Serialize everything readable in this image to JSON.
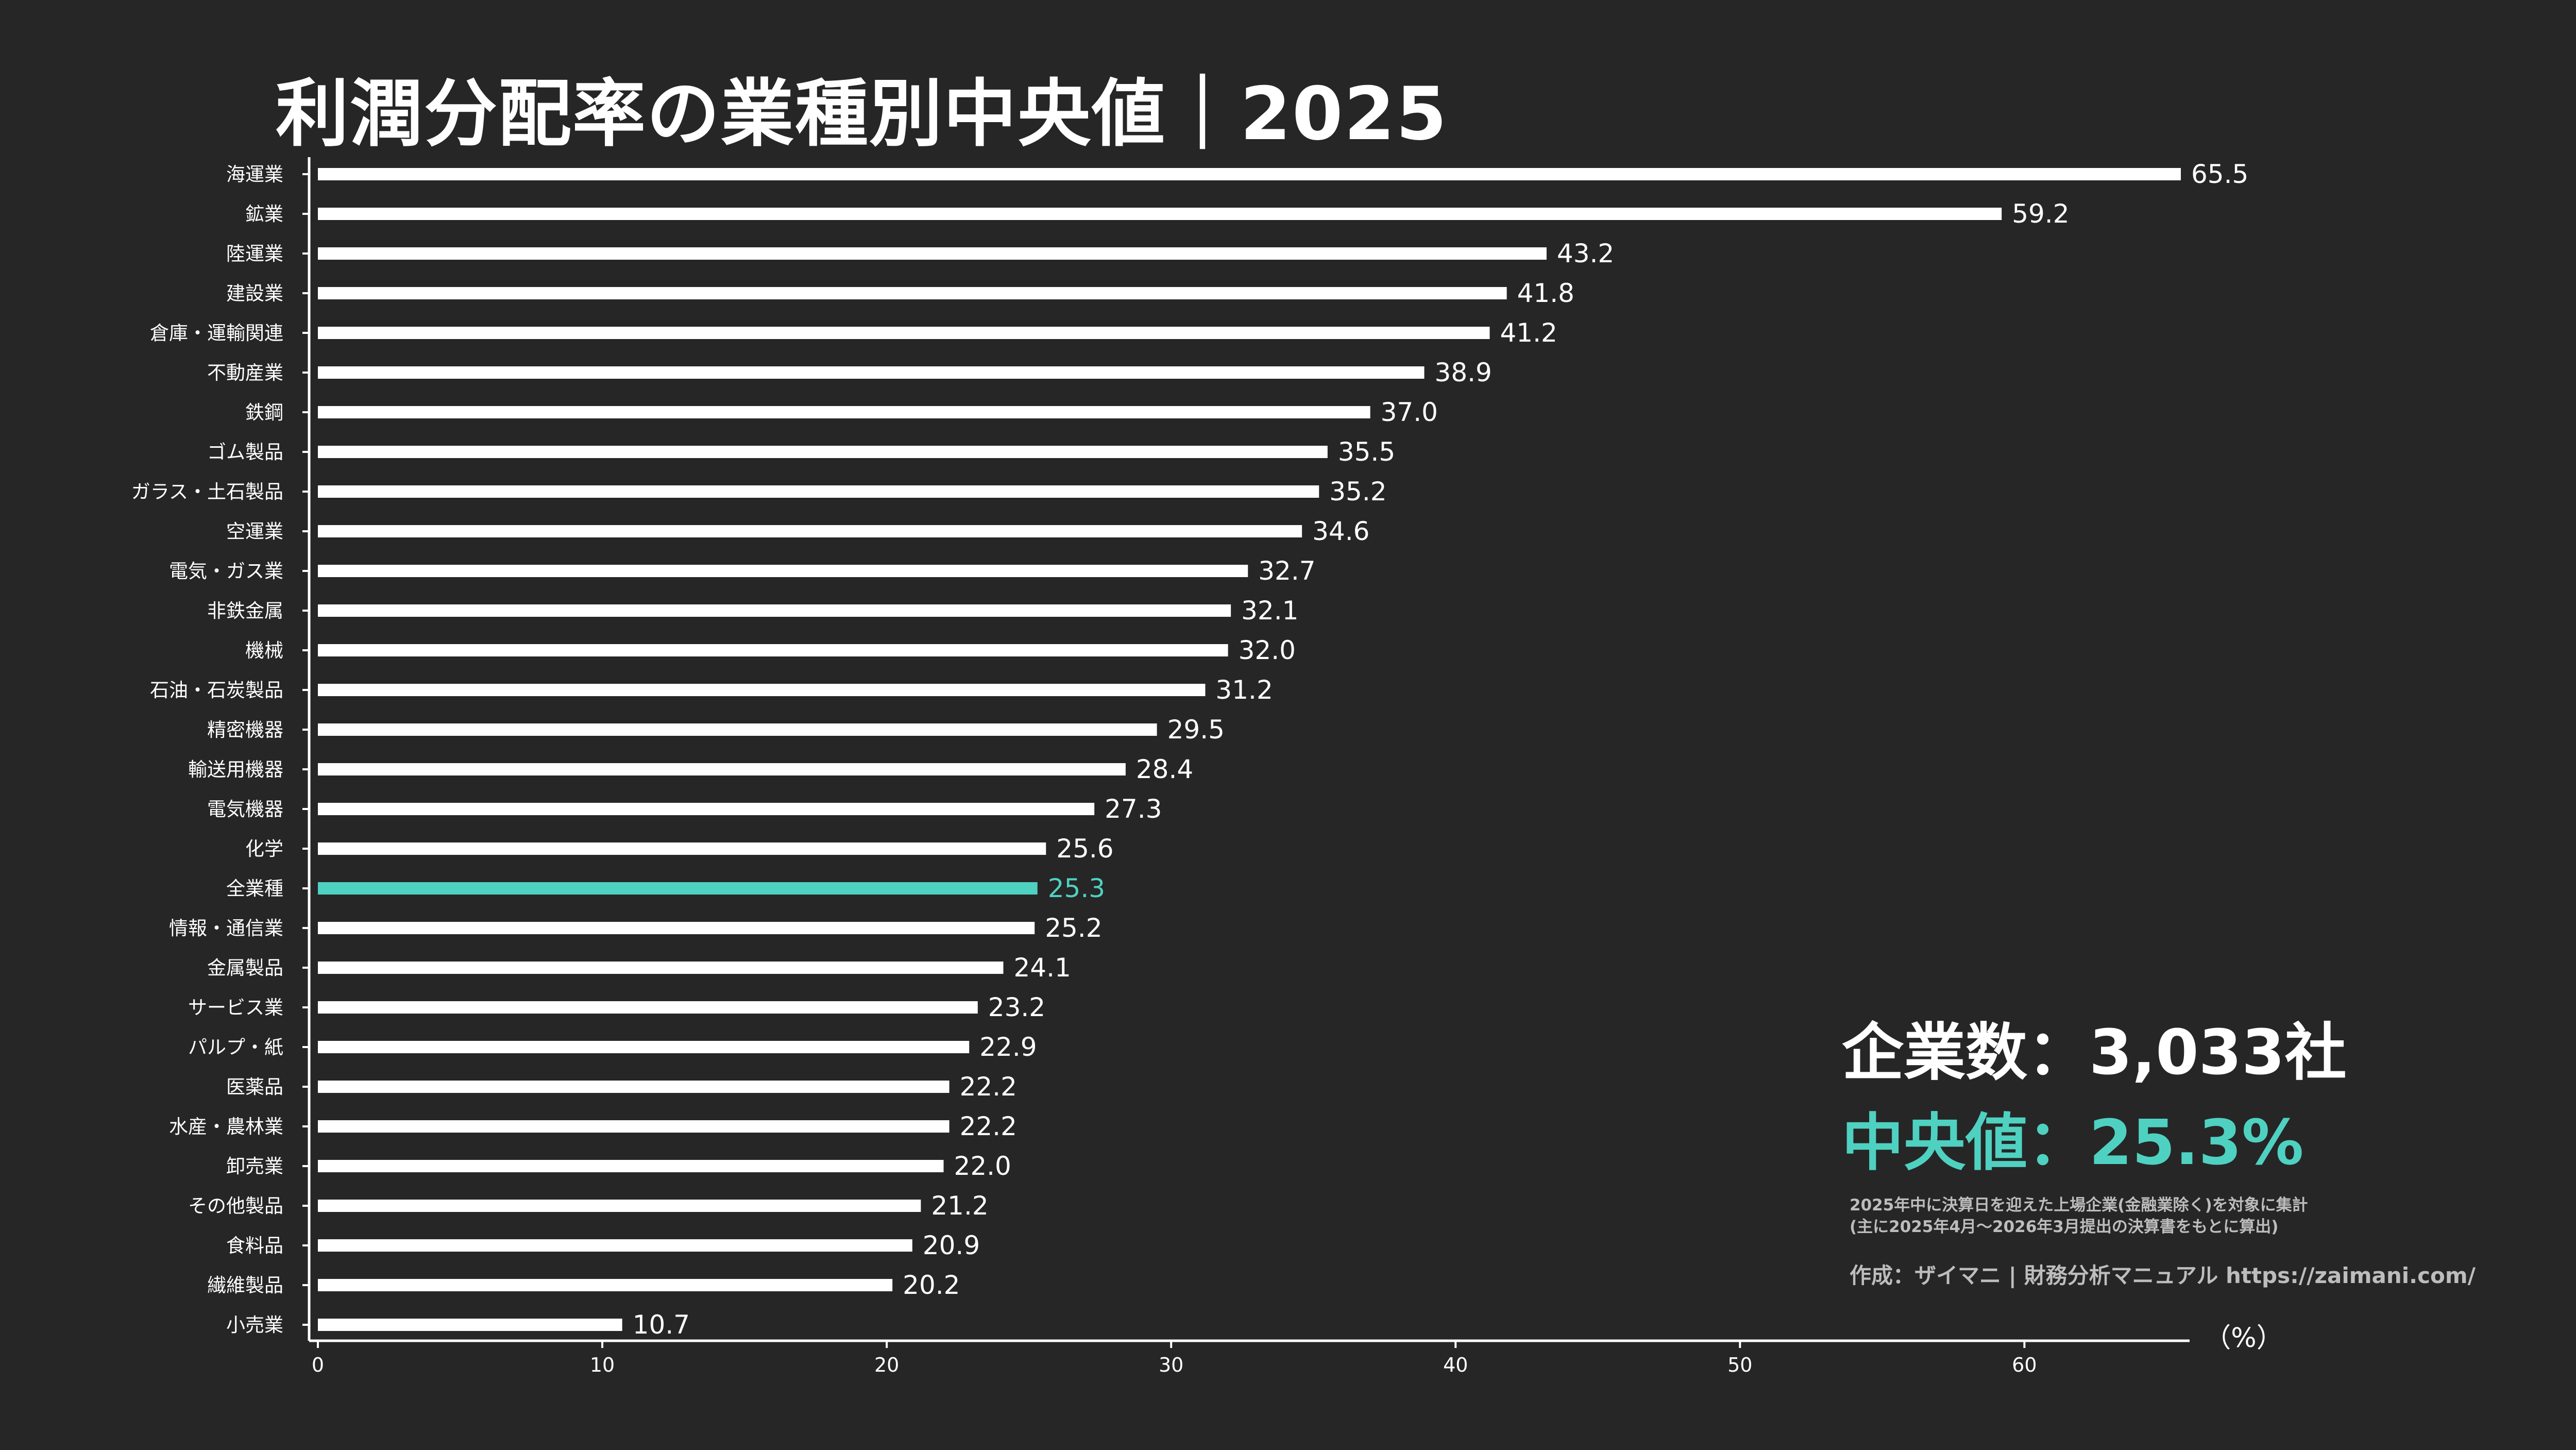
{
  "title": "利潤分配率の業種別中央値｜2025",
  "summary": {
    "company_count": "企業数：3,033社",
    "median": "中央値：25.3%"
  },
  "notes": {
    "line1": "2025年中に決算日を迎えた上場企業(金融業除く)を対象に集計",
    "line2": "(主に2025年4月〜2026年3月提出の決算書をもとに算出)"
  },
  "credit": "作成：ザイマニ | 財務分析マニュアル https://zaimani.com/",
  "colors": {
    "background": "#262626",
    "bar": "#ffffff",
    "highlight": "#4fd1c1",
    "text": "#ffffff",
    "note": "#bdbdbd"
  },
  "chart_data": {
    "type": "bar",
    "orientation": "horizontal",
    "categories": [
      "海運業",
      "鉱業",
      "陸運業",
      "建設業",
      "倉庫・運輸関連",
      "不動産業",
      "鉄鋼",
      "ゴム製品",
      "ガラス・土石製品",
      "空運業",
      "電気・ガス業",
      "非鉄金属",
      "機械",
      "石油・石炭製品",
      "精密機器",
      "輸送用機器",
      "電気機器",
      "化学",
      "全業種",
      "情報・通信業",
      "金属製品",
      "サービス業",
      "パルプ・紙",
      "医薬品",
      "水産・農林業",
      "卸売業",
      "その他製品",
      "食料品",
      "繊維製品",
      "小売業"
    ],
    "values": [
      65.5,
      59.2,
      43.2,
      41.8,
      41.2,
      38.9,
      37.0,
      35.5,
      35.2,
      34.6,
      32.7,
      32.1,
      32.0,
      31.2,
      29.5,
      28.4,
      27.3,
      25.6,
      25.3,
      25.2,
      24.1,
      23.2,
      22.9,
      22.2,
      22.2,
      22.0,
      21.2,
      20.9,
      20.2,
      10.7
    ],
    "value_labels": [
      "65.5",
      "59.2",
      "43.2",
      "41.8",
      "41.2",
      "38.9",
      "37.0",
      "35.5",
      "35.2",
      "34.6",
      "32.7",
      "32.1",
      "32.0",
      "31.2",
      "29.5",
      "28.4",
      "27.3",
      "25.6",
      "25.3",
      "25.2",
      "24.1",
      "23.2",
      "22.9",
      "22.2",
      "22.2",
      "22.0",
      "21.2",
      "20.9",
      "20.2",
      "10.7"
    ],
    "highlight_category": "全業種",
    "xlim": [
      0,
      65.5
    ],
    "xticks": [
      0,
      10,
      20,
      30,
      40,
      50,
      60
    ],
    "xtick_labels": [
      "0",
      "10",
      "20",
      "30",
      "40",
      "50",
      "60"
    ],
    "xlabel": "（%）",
    "grid": false
  }
}
